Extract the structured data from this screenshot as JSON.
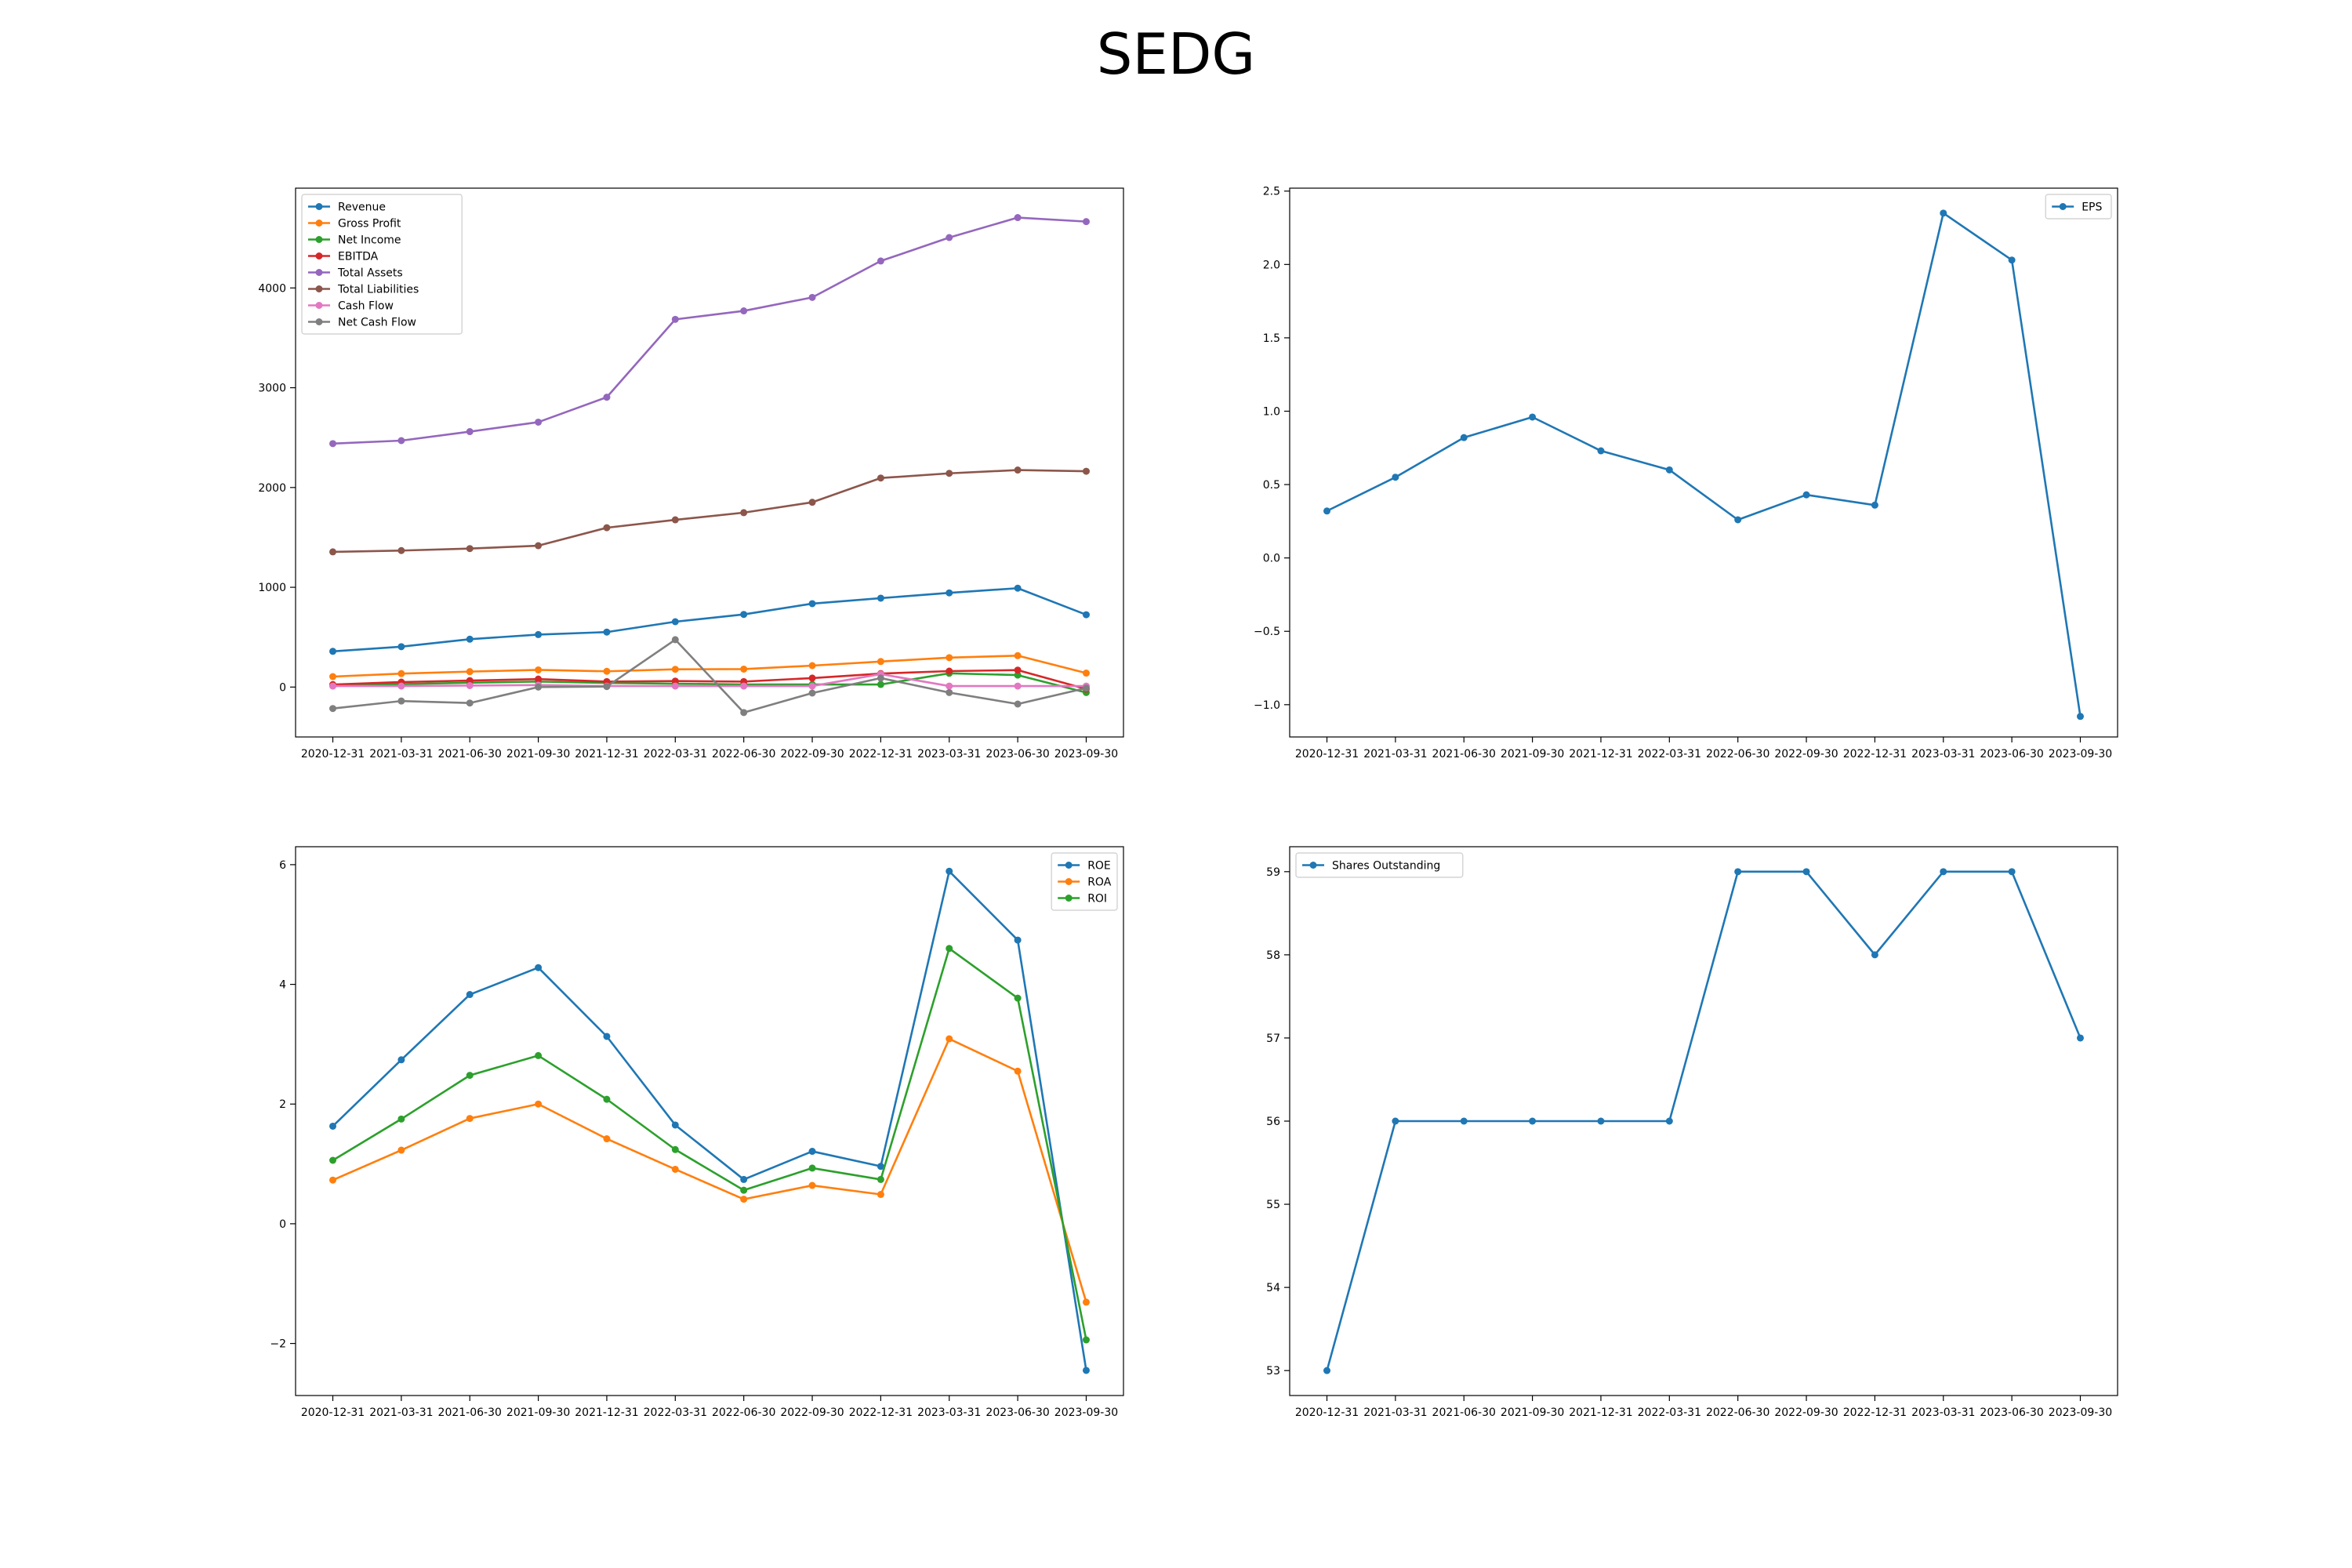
{
  "figure": {
    "title": "SEDG"
  },
  "chart_data": [
    {
      "type": "line",
      "title": "",
      "xlabel": "",
      "ylabel": "",
      "x": [
        "2020-12-31",
        "2021-03-31",
        "2021-06-30",
        "2021-09-30",
        "2021-12-31",
        "2022-03-31",
        "2022-06-30",
        "2022-09-30",
        "2022-12-31",
        "2023-03-31",
        "2023-06-30",
        "2023-09-30"
      ],
      "ylim": [
        -500,
        5000
      ],
      "yticks": [
        0,
        1000,
        2000,
        3000,
        4000
      ],
      "ytick_labels": [
        "0",
        "1000",
        "2000",
        "3000",
        "4000"
      ],
      "grid": false,
      "legend_position": "upper-left",
      "series": [
        {
          "name": "Revenue",
          "color": "#1f77b4",
          "values": [
            358,
            405,
            480,
            526,
            551,
            655,
            728,
            836,
            891,
            944,
            991,
            725
          ]
        },
        {
          "name": "Gross Profit",
          "color": "#ff7f0e",
          "values": [
            105,
            135,
            155,
            172,
            158,
            178,
            180,
            215,
            256,
            295,
            315,
            140
          ]
        },
        {
          "name": "Net Income",
          "color": "#2ca02c",
          "values": [
            17,
            30,
            44,
            55,
            42,
            34,
            26,
            26,
            26,
            138,
            120,
            -55
          ]
        },
        {
          "name": "EBITDA",
          "color": "#d62728",
          "values": [
            25,
            50,
            65,
            80,
            55,
            60,
            55,
            90,
            135,
            160,
            170,
            -20
          ]
        },
        {
          "name": "Total Assets",
          "color": "#9467bd",
          "values": [
            2440,
            2470,
            2560,
            2655,
            2905,
            3685,
            3770,
            3905,
            4270,
            4505,
            4705,
            4665
          ]
        },
        {
          "name": "Total Liabilities",
          "color": "#8c564b",
          "values": [
            1355,
            1368,
            1388,
            1417,
            1597,
            1676,
            1748,
            1852,
            2095,
            2142,
            2175,
            2163
          ]
        },
        {
          "name": "Cash Flow",
          "color": "#e377c2",
          "values": [
            10,
            10,
            15,
            20,
            10,
            10,
            10,
            10,
            130,
            10,
            10,
            10
          ]
        },
        {
          "name": "Net Cash Flow",
          "color": "#7f7f7f",
          "values": [
            -215,
            -140,
            -160,
            0,
            5,
            475,
            -255,
            -60,
            90,
            -55,
            -170,
            -10
          ]
        }
      ]
    },
    {
      "type": "line",
      "title": "",
      "xlabel": "",
      "ylabel": "",
      "x": [
        "2020-12-31",
        "2021-03-31",
        "2021-06-30",
        "2021-09-30",
        "2021-12-31",
        "2022-03-31",
        "2022-06-30",
        "2022-09-30",
        "2022-12-31",
        "2023-03-31",
        "2023-06-30",
        "2023-09-30"
      ],
      "ylim": [
        -1.22,
        2.52
      ],
      "yticks": [
        -1.0,
        -0.5,
        0.0,
        0.5,
        1.0,
        1.5,
        2.0,
        2.5
      ],
      "ytick_labels": [
        "−1.0",
        "−0.5",
        "0.0",
        "0.5",
        "1.0",
        "1.5",
        "2.0",
        "2.5"
      ],
      "grid": false,
      "legend_position": "upper-right",
      "series": [
        {
          "name": "EPS",
          "color": "#1f77b4",
          "values": [
            0.32,
            0.55,
            0.82,
            0.96,
            0.73,
            0.6,
            0.26,
            0.43,
            0.36,
            2.35,
            2.03,
            -1.08
          ]
        }
      ]
    },
    {
      "type": "line",
      "title": "",
      "xlabel": "",
      "ylabel": "",
      "x": [
        "2020-12-31",
        "2021-03-31",
        "2021-06-30",
        "2021-09-30",
        "2021-12-31",
        "2022-03-31",
        "2022-06-30",
        "2022-09-30",
        "2022-12-31",
        "2023-03-31",
        "2023-06-30",
        "2023-09-30"
      ],
      "ylim": [
        -2.87,
        6.3
      ],
      "yticks": [
        -2,
        0,
        2,
        4,
        6
      ],
      "ytick_labels": [
        "−2",
        "0",
        "2",
        "4",
        "6"
      ],
      "grid": false,
      "legend_position": "upper-right",
      "series": [
        {
          "name": "ROE",
          "color": "#1f77b4",
          "values": [
            1.63,
            2.74,
            3.83,
            4.28,
            3.13,
            1.65,
            0.74,
            1.21,
            0.96,
            5.89,
            4.74,
            -2.45
          ]
        },
        {
          "name": "ROA",
          "color": "#ff7f0e",
          "values": [
            0.73,
            1.23,
            1.76,
            2.0,
            1.42,
            0.91,
            0.41,
            0.64,
            0.49,
            3.09,
            2.55,
            -1.31
          ]
        },
        {
          "name": "ROI",
          "color": "#2ca02c",
          "values": [
            1.06,
            1.75,
            2.48,
            2.81,
            2.08,
            1.24,
            0.56,
            0.93,
            0.74,
            4.6,
            3.77,
            -1.94
          ]
        }
      ]
    },
    {
      "type": "line",
      "title": "",
      "xlabel": "",
      "ylabel": "",
      "x": [
        "2020-12-31",
        "2021-03-31",
        "2021-06-30",
        "2021-09-30",
        "2021-12-31",
        "2022-03-31",
        "2022-06-30",
        "2022-09-30",
        "2022-12-31",
        "2023-03-31",
        "2023-06-30",
        "2023-09-30"
      ],
      "ylim": [
        52.7,
        59.3
      ],
      "yticks": [
        53,
        54,
        55,
        56,
        57,
        58,
        59
      ],
      "ytick_labels": [
        "53",
        "54",
        "55",
        "56",
        "57",
        "58",
        "59"
      ],
      "grid": false,
      "legend_position": "upper-left",
      "series": [
        {
          "name": "Shares Outstanding",
          "color": "#1f77b4",
          "values": [
            53,
            56,
            56,
            56,
            56,
            56,
            59,
            59,
            58,
            59,
            59,
            57
          ]
        }
      ]
    }
  ]
}
